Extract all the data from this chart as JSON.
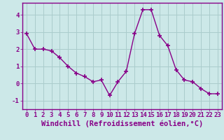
{
  "x": [
    0,
    1,
    2,
    3,
    4,
    5,
    6,
    7,
    8,
    9,
    10,
    11,
    12,
    13,
    14,
    15,
    16,
    17,
    18,
    19,
    20,
    21,
    22,
    23
  ],
  "y": [
    2.9,
    2.0,
    2.0,
    1.9,
    1.5,
    1.0,
    0.6,
    0.4,
    0.1,
    0.2,
    -0.7,
    0.1,
    0.7,
    2.9,
    4.3,
    4.3,
    2.8,
    2.2,
    0.8,
    0.2,
    0.1,
    -0.3,
    -0.6,
    -0.6
  ],
  "xlim": [
    -0.5,
    23.5
  ],
  "ylim": [
    -1.5,
    4.7
  ],
  "yticks": [
    -1,
    0,
    1,
    2,
    3,
    4
  ],
  "xticks": [
    0,
    1,
    2,
    3,
    4,
    5,
    6,
    7,
    8,
    9,
    10,
    11,
    12,
    13,
    14,
    15,
    16,
    17,
    18,
    19,
    20,
    21,
    22,
    23
  ],
  "line_color": "#880088",
  "marker": "+",
  "marker_size": 4,
  "marker_lw": 1.2,
  "line_width": 1.0,
  "xlabel": "Windchill (Refroidissement éolien,°C)",
  "background_color": "#cce8e8",
  "grid_color": "#aacccc",
  "spine_color": "#880088",
  "label_color": "#880088",
  "font_size_xlabel": 7.5,
  "font_size_ticks": 6.5
}
